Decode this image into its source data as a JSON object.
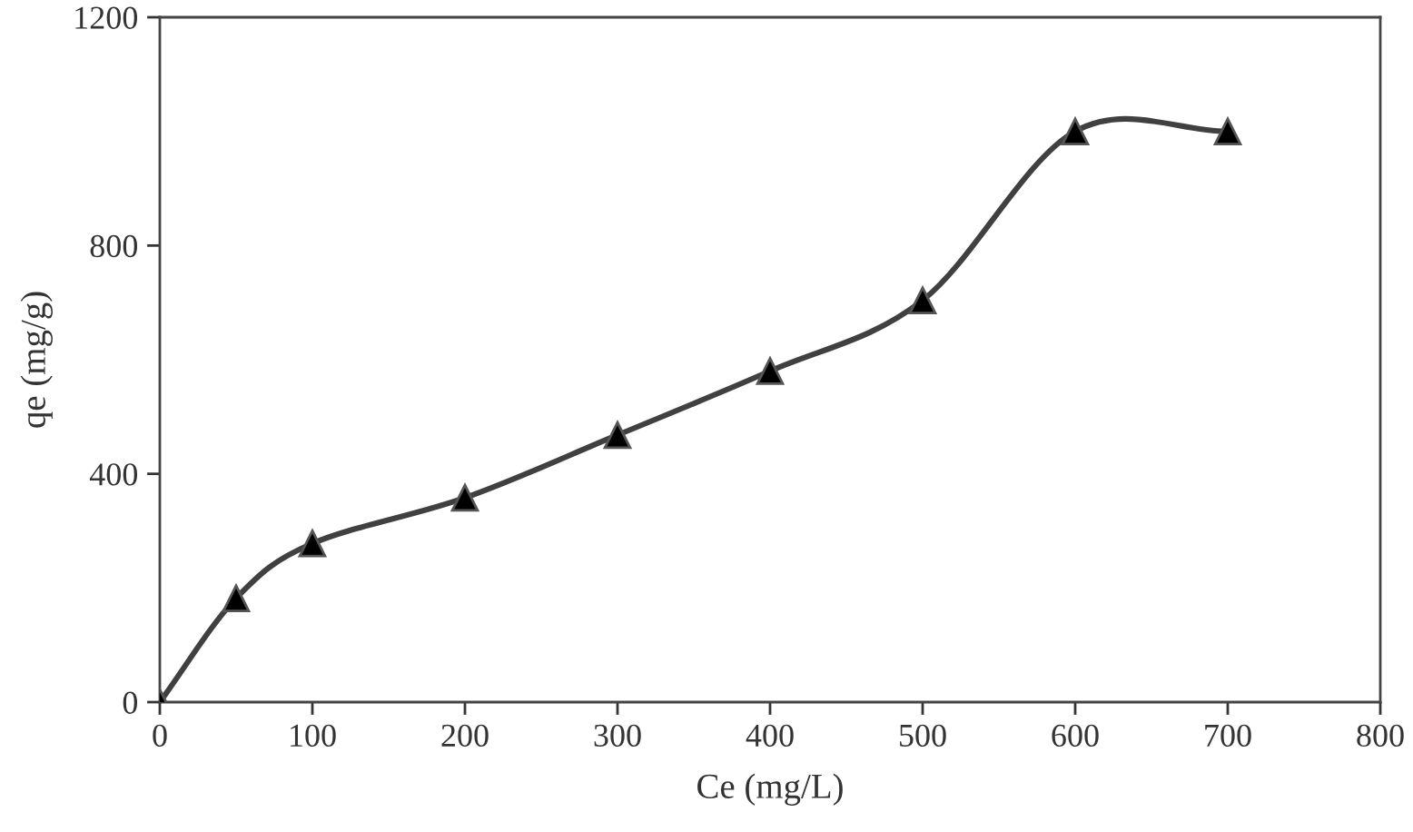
{
  "chart_data": {
    "type": "line",
    "xlabel": "Ce (mg/L)",
    "ylabel": "qe (mg/g)",
    "x": [
      0,
      50,
      100,
      200,
      300,
      400,
      500,
      600,
      700
    ],
    "series": [
      {
        "color": "#404040",
        "values": [
          0,
          182,
          278,
          358,
          468,
          580,
          704,
          1000,
          1000
        ]
      }
    ],
    "marker": "triangle",
    "line_style": "solid",
    "grid": false,
    "xlim": [
      0,
      800
    ],
    "xticks": [
      0,
      100,
      200,
      300,
      400,
      500,
      600,
      700,
      800
    ],
    "ylim": [
      0,
      1200
    ],
    "yticks": [
      0,
      400,
      800,
      1200
    ]
  }
}
